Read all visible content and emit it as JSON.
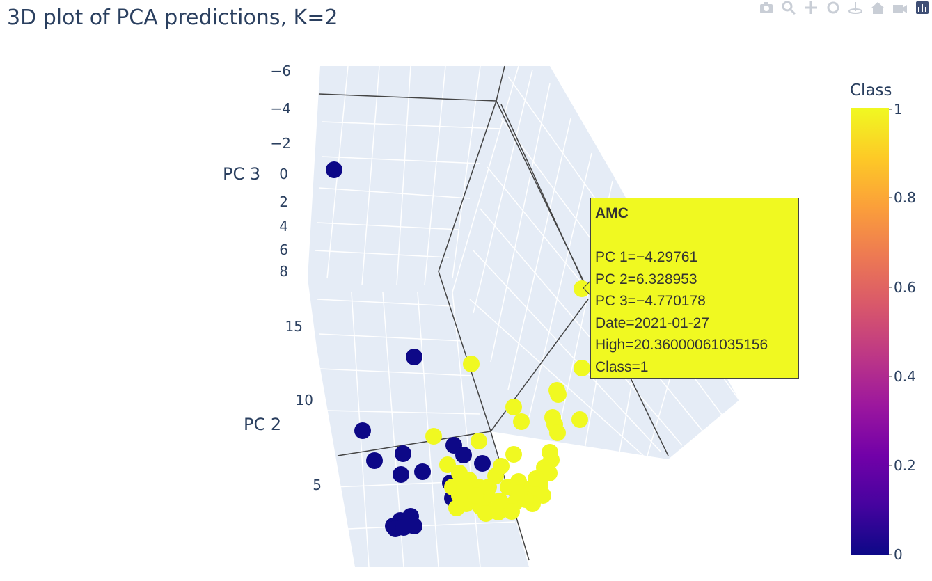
{
  "title": "3D plot of PCA predictions, K=2",
  "modebar": {
    "buttons": [
      "camera-icon",
      "zoom-icon",
      "pan-icon",
      "orbit-icon",
      "turntable-icon",
      "home-icon",
      "reset-camera-icon",
      "plotly-logo-icon"
    ]
  },
  "chart_data": {
    "type": "scatter3d",
    "axes": {
      "pc3": {
        "label": "PC 3",
        "ticks": [
          "−6",
          "−4",
          "−2",
          "0",
          "2",
          "4",
          "6",
          "8"
        ]
      },
      "pc2": {
        "label": "PC 2",
        "ticks": [
          "15",
          "10",
          "5"
        ]
      }
    },
    "colorbar": {
      "title": "Class",
      "ticks": [
        "1",
        "0.8",
        "0.6",
        "0.4",
        "0.2",
        "0"
      ],
      "colorscale": [
        "#0d0887",
        "#46039f",
        "#7201a8",
        "#9c179e",
        "#bd3786",
        "#d8576b",
        "#ed7953",
        "#fb9f3a",
        "#fdca26",
        "#f0f921"
      ]
    },
    "class_colors": {
      "0": "#0d0887",
      "1": "#f0f921"
    },
    "hover": {
      "title": "AMC",
      "lines": [
        "PC 1=−4.29761",
        "PC 2=6.328953",
        "PC 3=−4.770178",
        "Date=2021-01-27",
        "High=20.36000061035156",
        "Class=1"
      ]
    }
  }
}
